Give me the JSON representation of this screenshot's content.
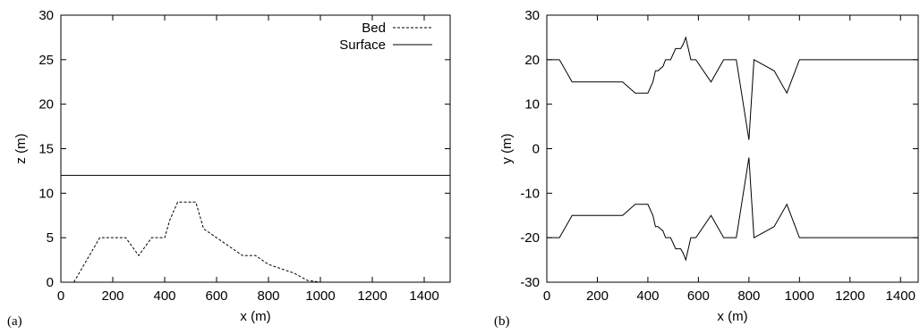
{
  "chart_data": [
    {
      "panel": "(a)",
      "type": "line",
      "xlabel": "x (m)",
      "ylabel": "z (m)",
      "xlim": [
        0,
        1500
      ],
      "ylim": [
        0,
        30
      ],
      "xticks": [
        0,
        200,
        400,
        600,
        800,
        1000,
        1200,
        1400
      ],
      "yticks": [
        0,
        5,
        10,
        15,
        20,
        25,
        30
      ],
      "grid": false,
      "legend": "top-right",
      "series": [
        {
          "name": "Bed",
          "style": "dashed",
          "color": "#000000",
          "x": [
            50,
            150,
            250,
            300,
            350,
            400,
            420,
            450,
            500,
            520,
            550,
            600,
            700,
            750,
            800,
            900,
            950,
            1000
          ],
          "y": [
            0,
            5,
            5,
            3,
            5,
            5,
            7,
            9,
            9,
            9,
            6,
            5,
            3,
            3,
            2,
            1,
            0.2,
            0
          ]
        },
        {
          "name": "Surface",
          "style": "solid",
          "color": "#000000",
          "x": [
            0,
            1500
          ],
          "y": [
            12,
            12
          ]
        }
      ]
    },
    {
      "panel": "(b)",
      "type": "line",
      "xlabel": "x (m)",
      "ylabel": "y (m)",
      "xlim": [
        0,
        1470
      ],
      "ylim": [
        -30,
        30
      ],
      "xticks": [
        0,
        200,
        400,
        600,
        800,
        1000,
        1200,
        1400
      ],
      "yticks": [
        -30,
        -20,
        -10,
        0,
        10,
        20,
        30
      ],
      "grid": false,
      "series": [
        {
          "style": "solid",
          "color": "#000000",
          "x": [
            0,
            50,
            100,
            300,
            350,
            400,
            420,
            430,
            440,
            460,
            470,
            490,
            510,
            530,
            540,
            550,
            560,
            570,
            590,
            650,
            700,
            750,
            800,
            820,
            900,
            950,
            1000,
            1470
          ],
          "y": [
            20,
            20,
            15,
            15,
            12.5,
            12.5,
            15,
            17.5,
            17.5,
            18.5,
            20,
            20,
            22.5,
            22.5,
            23.5,
            25,
            22.5,
            20,
            20,
            15,
            20,
            20,
            2,
            20,
            17.5,
            12.5,
            20,
            20
          ]
        },
        {
          "style": "solid",
          "color": "#000000",
          "x": [
            0,
            50,
            100,
            300,
            350,
            400,
            420,
            430,
            440,
            460,
            470,
            490,
            510,
            530,
            540,
            550,
            560,
            570,
            590,
            650,
            700,
            750,
            800,
            820,
            900,
            950,
            1000,
            1470
          ],
          "y": [
            -20,
            -20,
            -15,
            -15,
            -12.5,
            -12.5,
            -15,
            -17.5,
            -17.5,
            -18.5,
            -20,
            -20,
            -22.5,
            -22.5,
            -23.5,
            -25,
            -22.5,
            -20,
            -20,
            -15,
            -20,
            -20,
            -2,
            -20,
            -17.5,
            -12.5,
            -20,
            -20
          ]
        }
      ]
    }
  ]
}
